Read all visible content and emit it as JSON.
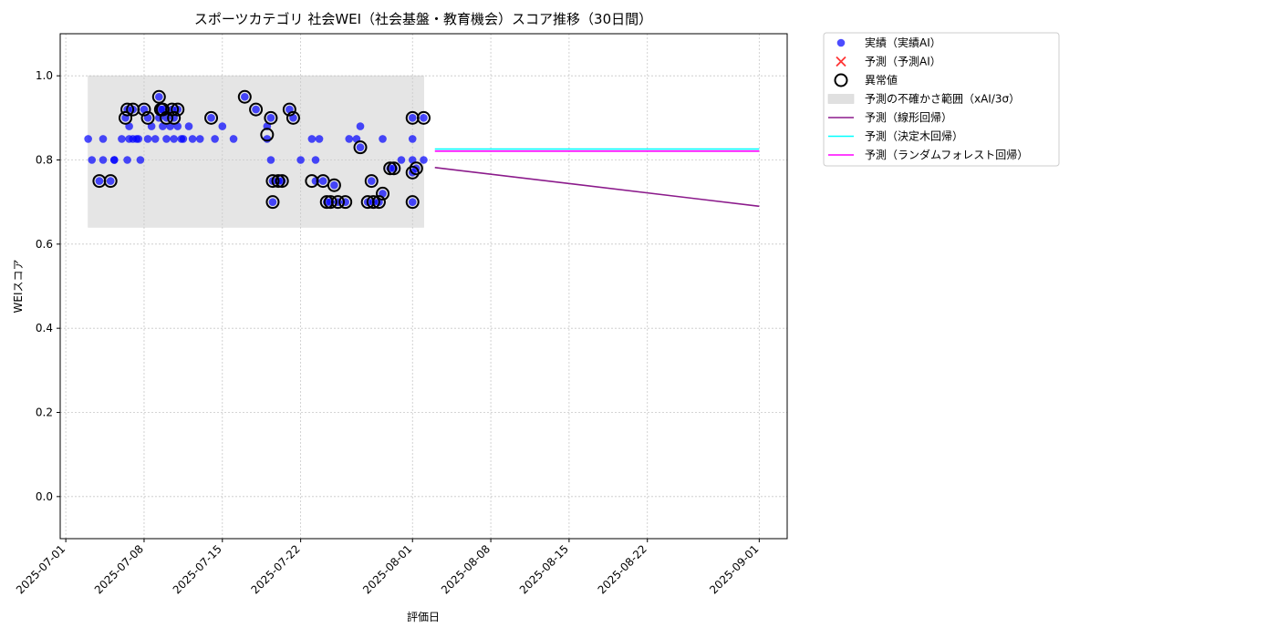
{
  "chart_data": {
    "type": "scatter",
    "title": "スポーツカテゴリ 社会WEI（社会基盤・教育機会）スコア推移（30日間）",
    "xlabel": "評価日",
    "ylabel": "WEIスコア",
    "xlim": [
      "2025-06-30T12:00",
      "2025-09-03T12:00"
    ],
    "ylim": [
      -0.1,
      1.1
    ],
    "x_ticks": [
      "2025-07-01",
      "2025-07-08",
      "2025-07-15",
      "2025-07-22",
      "2025-08-01",
      "2025-08-08",
      "2025-08-15",
      "2025-08-22",
      "2025-09-01"
    ],
    "y_ticks": [
      "0.0",
      "0.2",
      "0.4",
      "0.6",
      "0.8",
      "1.0"
    ],
    "grid": true,
    "legend_position": "outside-top-right",
    "legend": [
      {
        "label": "実績（実績AI）",
        "kind": "dot",
        "color": "#0000ff"
      },
      {
        "label": "予測（予測AI）",
        "kind": "cross",
        "color": "#ff0000"
      },
      {
        "label": "異常値",
        "kind": "ring",
        "color": "#000000"
      },
      {
        "label": "予測の不確かさ範囲（xAI/3σ）",
        "kind": "band",
        "color": "#cccccc"
      },
      {
        "label": "予測（線形回帰）",
        "kind": "line",
        "color": "#8b1a8b"
      },
      {
        "label": "予測（決定木回帰）",
        "kind": "line",
        "color": "#00ffff"
      },
      {
        "label": "予測（ランダムフォレスト回帰）",
        "kind": "line",
        "color": "#ff00ff"
      }
    ],
    "uncertainty_band": {
      "x": [
        "2025-07-03",
        "2025-08-02"
      ],
      "y": [
        0.64,
        1.0
      ],
      "color": "#cccccc"
    },
    "series": [
      {
        "name": "実績（実績AI）",
        "kind": "scatter",
        "color": "#0000ff",
        "points": [
          [
            "2025-07-03T00:00",
            0.85
          ],
          [
            "2025-07-03T08:00",
            0.8
          ],
          [
            "2025-07-04T00:00",
            0.75
          ],
          [
            "2025-07-04T08:00",
            0.85
          ],
          [
            "2025-07-04T08:00",
            0.8
          ],
          [
            "2025-07-05T00:00",
            0.75
          ],
          [
            "2025-07-05T08:00",
            0.8
          ],
          [
            "2025-07-05T08:00",
            0.8
          ],
          [
            "2025-07-06T00:00",
            0.85
          ],
          [
            "2025-07-06T08:00",
            0.9
          ],
          [
            "2025-07-06T12:00",
            0.8
          ],
          [
            "2025-07-06T12:00",
            0.92
          ],
          [
            "2025-07-06T16:00",
            0.85
          ],
          [
            "2025-07-06T16:00",
            0.88
          ],
          [
            "2025-07-07T00:00",
            0.92
          ],
          [
            "2025-07-07T00:00",
            0.85
          ],
          [
            "2025-07-07T08:00",
            0.85
          ],
          [
            "2025-07-07T12:00",
            0.85
          ],
          [
            "2025-07-07T16:00",
            0.8
          ],
          [
            "2025-07-08T00:00",
            0.92
          ],
          [
            "2025-07-08T08:00",
            0.85
          ],
          [
            "2025-07-08T08:00",
            0.9
          ],
          [
            "2025-07-08T16:00",
            0.88
          ],
          [
            "2025-07-09T00:00",
            0.85
          ],
          [
            "2025-07-09T08:00",
            0.95
          ],
          [
            "2025-07-09T08:00",
            0.9
          ],
          [
            "2025-07-09T12:00",
            0.92
          ],
          [
            "2025-07-09T16:00",
            0.88
          ],
          [
            "2025-07-09T16:00",
            0.92
          ],
          [
            "2025-07-10T00:00",
            0.9
          ],
          [
            "2025-07-10T00:00",
            0.85
          ],
          [
            "2025-07-10T08:00",
            0.88
          ],
          [
            "2025-07-10T12:00",
            0.92
          ],
          [
            "2025-07-10T16:00",
            0.85
          ],
          [
            "2025-07-10T16:00",
            0.9
          ],
          [
            "2025-07-11T00:00",
            0.92
          ],
          [
            "2025-07-11T00:00",
            0.88
          ],
          [
            "2025-07-11T08:00",
            0.85
          ],
          [
            "2025-07-11T12:00",
            0.85
          ],
          [
            "2025-07-12T00:00",
            0.88
          ],
          [
            "2025-07-12T08:00",
            0.85
          ],
          [
            "2025-07-13T00:00",
            0.85
          ],
          [
            "2025-07-14T00:00",
            0.9
          ],
          [
            "2025-07-14T08:00",
            0.85
          ],
          [
            "2025-07-15T00:00",
            0.88
          ],
          [
            "2025-07-16T00:00",
            0.85
          ],
          [
            "2025-07-17T00:00",
            0.95
          ],
          [
            "2025-07-18T00:00",
            0.92
          ],
          [
            "2025-07-19T00:00",
            0.88
          ],
          [
            "2025-07-19T00:00",
            0.85
          ],
          [
            "2025-07-19T08:00",
            0.9
          ],
          [
            "2025-07-19T08:00",
            0.8
          ],
          [
            "2025-07-19T12:00",
            0.75
          ],
          [
            "2025-07-19T12:00",
            0.7
          ],
          [
            "2025-07-20T00:00",
            0.75
          ],
          [
            "2025-07-20T08:00",
            0.75
          ],
          [
            "2025-07-21T00:00",
            0.92
          ],
          [
            "2025-07-21T08:00",
            0.9
          ],
          [
            "2025-07-22T00:00",
            0.8
          ],
          [
            "2025-07-23T00:00",
            0.85
          ],
          [
            "2025-07-23T08:00",
            0.8
          ],
          [
            "2025-07-23T08:00",
            0.75
          ],
          [
            "2025-07-23T16:00",
            0.85
          ],
          [
            "2025-07-24T00:00",
            0.75
          ],
          [
            "2025-07-24T08:00",
            0.7
          ],
          [
            "2025-07-24T16:00",
            0.7
          ],
          [
            "2025-07-25T00:00",
            0.74
          ],
          [
            "2025-07-25T08:00",
            0.7
          ],
          [
            "2025-07-26T00:00",
            0.7
          ],
          [
            "2025-07-26T08:00",
            0.85
          ],
          [
            "2025-07-27T00:00",
            0.85
          ],
          [
            "2025-07-27T08:00",
            0.83
          ],
          [
            "2025-07-27T08:00",
            0.88
          ],
          [
            "2025-07-28T00:00",
            0.7
          ],
          [
            "2025-07-28T08:00",
            0.75
          ],
          [
            "2025-07-28T12:00",
            0.7
          ],
          [
            "2025-07-29T00:00",
            0.7
          ],
          [
            "2025-07-29T08:00",
            0.72
          ],
          [
            "2025-07-29T08:00",
            0.85
          ],
          [
            "2025-07-30T00:00",
            0.78
          ],
          [
            "2025-07-30T08:00",
            0.78
          ],
          [
            "2025-07-31T00:00",
            0.8
          ],
          [
            "2025-08-01T00:00",
            0.8
          ],
          [
            "2025-08-01T00:00",
            0.85
          ],
          [
            "2025-08-01T00:00",
            0.7
          ],
          [
            "2025-08-01T00:00",
            0.77
          ],
          [
            "2025-08-01T00:00",
            0.9
          ],
          [
            "2025-08-01T08:00",
            0.78
          ],
          [
            "2025-08-02T00:00",
            0.8
          ],
          [
            "2025-08-02T00:00",
            0.9
          ]
        ]
      },
      {
        "name": "異常値",
        "kind": "ring",
        "color": "#000000",
        "points": [
          [
            "2025-07-04T00:00",
            0.75
          ],
          [
            "2025-07-05T00:00",
            0.75
          ],
          [
            "2025-07-06T08:00",
            0.9
          ],
          [
            "2025-07-06T12:00",
            0.92
          ],
          [
            "2025-07-07T00:00",
            0.92
          ],
          [
            "2025-07-08T00:00",
            0.92
          ],
          [
            "2025-07-08T08:00",
            0.9
          ],
          [
            "2025-07-09T08:00",
            0.95
          ],
          [
            "2025-07-09T12:00",
            0.92
          ],
          [
            "2025-07-09T16:00",
            0.92
          ],
          [
            "2025-07-10T00:00",
            0.9
          ],
          [
            "2025-07-10T12:00",
            0.92
          ],
          [
            "2025-07-10T16:00",
            0.9
          ],
          [
            "2025-07-11T00:00",
            0.92
          ],
          [
            "2025-07-14T00:00",
            0.9
          ],
          [
            "2025-07-17T00:00",
            0.95
          ],
          [
            "2025-07-18T00:00",
            0.92
          ],
          [
            "2025-07-19T08:00",
            0.9
          ],
          [
            "2025-07-19T00:00",
            0.86
          ],
          [
            "2025-07-19T12:00",
            0.75
          ],
          [
            "2025-07-19T12:00",
            0.7
          ],
          [
            "2025-07-20T00:00",
            0.75
          ],
          [
            "2025-07-20T08:00",
            0.75
          ],
          [
            "2025-07-21T00:00",
            0.92
          ],
          [
            "2025-07-21T08:00",
            0.9
          ],
          [
            "2025-07-23T00:00",
            0.75
          ],
          [
            "2025-07-24T00:00",
            0.75
          ],
          [
            "2025-07-24T08:00",
            0.7
          ],
          [
            "2025-07-24T16:00",
            0.7
          ],
          [
            "2025-07-25T00:00",
            0.74
          ],
          [
            "2025-07-25T08:00",
            0.7
          ],
          [
            "2025-07-26T00:00",
            0.7
          ],
          [
            "2025-07-27T08:00",
            0.83
          ],
          [
            "2025-07-28T00:00",
            0.7
          ],
          [
            "2025-07-28T08:00",
            0.75
          ],
          [
            "2025-07-28T12:00",
            0.7
          ],
          [
            "2025-07-29T00:00",
            0.7
          ],
          [
            "2025-07-29T08:00",
            0.72
          ],
          [
            "2025-07-30T00:00",
            0.78
          ],
          [
            "2025-07-30T08:00",
            0.78
          ],
          [
            "2025-08-01T00:00",
            0.9
          ],
          [
            "2025-08-01T00:00",
            0.7
          ],
          [
            "2025-08-01T00:00",
            0.77
          ],
          [
            "2025-08-01T08:00",
            0.78
          ],
          [
            "2025-08-02T00:00",
            0.9
          ]
        ]
      },
      {
        "name": "予測（線形回帰）",
        "kind": "line",
        "color": "#8b1a8b",
        "points": [
          [
            "2025-08-03",
            0.782
          ],
          [
            "2025-09-01",
            0.69
          ]
        ]
      },
      {
        "name": "予測（決定木回帰）",
        "kind": "line",
        "color": "#00ffff",
        "points": [
          [
            "2025-08-03",
            0.826
          ],
          [
            "2025-09-01",
            0.826
          ]
        ]
      },
      {
        "name": "予測（ランダムフォレスト回帰）",
        "kind": "line",
        "color": "#ff00ff",
        "points": [
          [
            "2025-08-03",
            0.821
          ],
          [
            "2025-09-01",
            0.821
          ]
        ]
      }
    ]
  }
}
